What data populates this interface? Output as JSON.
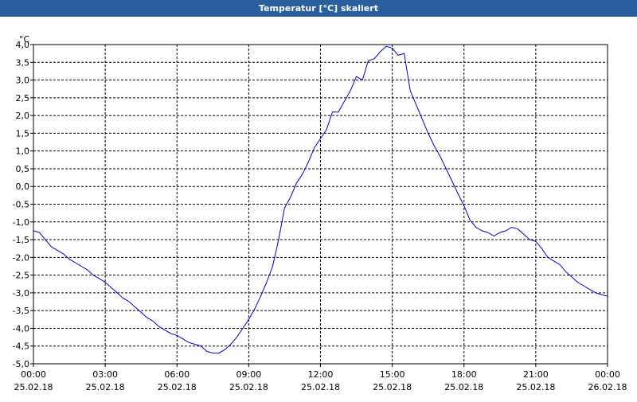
{
  "window": {
    "title": "Temperatur [°C] skaliert"
  },
  "chart_data": {
    "type": "line",
    "title": "Temperatur [°C] skaliert",
    "ylabel": "°C",
    "xlabel": "",
    "ylim": [
      -5.0,
      4.0
    ],
    "xlim_hours": [
      0,
      24
    ],
    "grid": true,
    "y_ticks": [
      "4,0",
      "3,5",
      "3,0",
      "2,5",
      "2,0",
      "1,5",
      "1,0",
      "0,5",
      "0,0",
      "-0,5",
      "-1,0",
      "-1,5",
      "-2,0",
      "-2,5",
      "-3,0",
      "-3,5",
      "-4,0",
      "-4,5",
      "-5,0"
    ],
    "x_ticks": [
      {
        "time": "00:00",
        "date": "25.02.18"
      },
      {
        "time": "03:00",
        "date": "25.02.18"
      },
      {
        "time": "06:00",
        "date": "25.02.18"
      },
      {
        "time": "09:00",
        "date": "25.02.18"
      },
      {
        "time": "12:00",
        "date": "25.02.18"
      },
      {
        "time": "15:00",
        "date": "25.02.18"
      },
      {
        "time": "18:00",
        "date": "25.02.18"
      },
      {
        "time": "21:00",
        "date": "25.02.18"
      },
      {
        "time": "00:00",
        "date": "26.02.18"
      }
    ],
    "colors": {
      "line": "#0000cc",
      "grid": "#000000",
      "title_bar": "#2a5f9e"
    },
    "series": [
      {
        "x": [
          0.0,
          0.25,
          0.5,
          0.75,
          1.0,
          1.25,
          1.5,
          1.75,
          2.0,
          2.25,
          2.5,
          2.75,
          3.0,
          3.25,
          3.5,
          3.75,
          4.0,
          4.25,
          4.5,
          4.75,
          5.0,
          5.25,
          5.5,
          5.75,
          6.0,
          6.25,
          6.5,
          6.75,
          7.0,
          7.25,
          7.5,
          7.75,
          8.0,
          8.25,
          8.5,
          8.75,
          9.0,
          9.25,
          9.5,
          9.75,
          10.0,
          10.25,
          10.5,
          10.75,
          11.0,
          11.25,
          11.5,
          11.75,
          12.0,
          12.25,
          12.5,
          12.75,
          13.0,
          13.25,
          13.5,
          13.75,
          14.0,
          14.25,
          14.5,
          14.75,
          15.0,
          15.25,
          15.5,
          15.75,
          16.0,
          16.25,
          16.5,
          16.75,
          17.0,
          17.25,
          17.5,
          17.75,
          18.0,
          18.25,
          18.5,
          18.75,
          19.0,
          19.25,
          19.5,
          19.75,
          20.0,
          20.25,
          20.5,
          20.75,
          21.0,
          21.25,
          21.5,
          21.75,
          22.0,
          22.25,
          22.5,
          22.75,
          23.0,
          23.25,
          23.5,
          23.75,
          24.0
        ],
        "y": [
          -1.25,
          -1.3,
          -1.5,
          -1.7,
          -1.8,
          -1.9,
          -2.05,
          -2.15,
          -2.25,
          -2.35,
          -2.5,
          -2.6,
          -2.7,
          -2.85,
          -3.0,
          -3.15,
          -3.25,
          -3.4,
          -3.55,
          -3.7,
          -3.8,
          -3.95,
          -4.05,
          -4.15,
          -4.2,
          -4.3,
          -4.4,
          -4.45,
          -4.5,
          -4.65,
          -4.7,
          -4.7,
          -4.6,
          -4.45,
          -4.25,
          -4.0,
          -3.75,
          -3.45,
          -3.1,
          -2.7,
          -2.25,
          -1.5,
          -0.6,
          -0.3,
          0.1,
          0.35,
          0.7,
          1.1,
          1.35,
          1.6,
          2.1,
          2.1,
          2.4,
          2.7,
          3.1,
          3.0,
          3.55,
          3.6,
          3.8,
          3.95,
          3.9,
          3.7,
          3.75,
          2.7,
          2.3,
          1.9,
          1.5,
          1.15,
          0.85,
          0.5,
          0.15,
          -0.2,
          -0.55,
          -0.95,
          -1.15,
          -1.25,
          -1.3,
          -1.4,
          -1.3,
          -1.25,
          -1.15,
          -1.2,
          -1.35,
          -1.5,
          -1.55,
          -1.75,
          -2.0,
          -2.1,
          -2.2,
          -2.4,
          -2.55,
          -2.7,
          -2.8,
          -2.9,
          -3.0,
          -3.05,
          -3.1
        ]
      }
    ]
  }
}
